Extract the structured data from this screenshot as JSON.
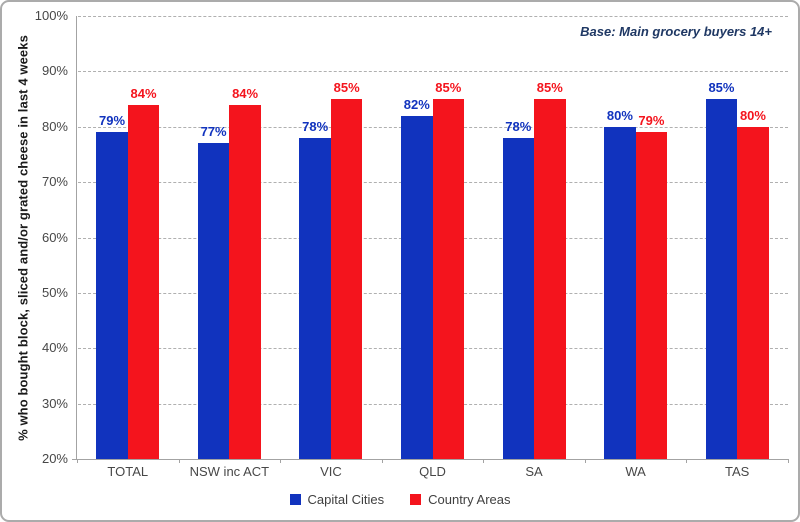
{
  "chart_data": {
    "type": "bar",
    "title": "",
    "categories": [
      "TOTAL",
      "NSW inc ACT",
      "VIC",
      "QLD",
      "SA",
      "WA",
      "TAS"
    ],
    "series": [
      {
        "name": "Capital Cities",
        "color": "#1133be",
        "values": [
          79,
          77,
          78,
          82,
          78,
          80,
          85
        ]
      },
      {
        "name": "Country Areas",
        "color": "#f4141d",
        "values": [
          84,
          84,
          85,
          85,
          85,
          79,
          80
        ]
      }
    ],
    "xlabel": "",
    "ylabel": "% who bought block, sliced and/or grated cheese in last 4 weeks",
    "ylim": [
      20,
      100
    ],
    "ytick_step": 10,
    "ytick_labels": [
      "20%",
      "30%",
      "40%",
      "50%",
      "60%",
      "70%",
      "80%",
      "90%",
      "100%"
    ],
    "value_label_suffix": "%",
    "grid": "horizontal-dashed",
    "legend_position": "bottom",
    "annotation": "Base: Main grocery buyers 14+",
    "annotation_color": "#1f3864",
    "axis_color": "#a3a3a3",
    "gridline_color": "#b0b0b0",
    "tick_label_color": "#474747"
  }
}
